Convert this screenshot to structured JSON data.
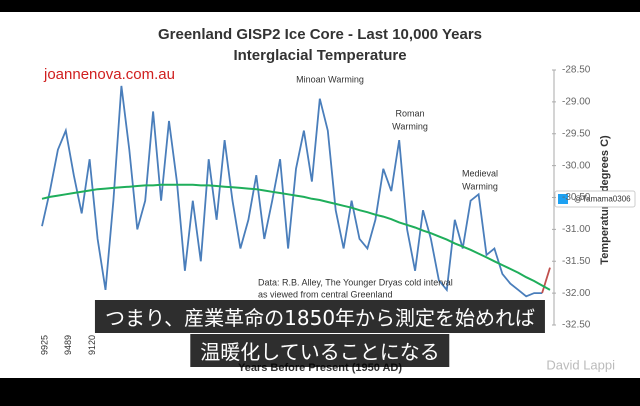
{
  "chart_data": {
    "type": "line",
    "title": "Greenland GISP2 Ice Core - Last 10,000 Years",
    "subtitle": "Interglacial Temperature",
    "source": "joannenova.com.au",
    "x_label": "Years Before Present (1950 AD)",
    "y_label": "Temperature (degrees C)",
    "annotations": [
      "Minoan Warming",
      "Roman",
      "Warming",
      "Medieval",
      "Warming",
      "Data: R.B. Alley, The Younger Dryas cold interval",
      "as viewed from central Greenland"
    ],
    "categories": [
      "9925",
      null,
      null,
      "9489",
      null,
      null,
      "9120",
      null,
      null,
      null,
      null,
      null,
      null,
      null,
      null,
      null,
      null,
      null,
      null,
      null,
      null,
      null,
      null,
      null,
      null,
      null,
      null,
      null,
      null,
      null,
      null,
      null,
      null,
      null,
      null,
      null,
      null,
      null,
      null,
      null,
      null,
      null,
      null,
      null,
      null,
      null,
      null,
      null,
      null,
      null,
      null,
      null,
      null,
      null,
      null,
      null,
      null,
      null,
      null,
      null,
      null,
      null,
      null,
      null,
      null
    ],
    "series": [
      {
        "color": "#4a7ebb",
        "values": [
          -30.95,
          -30.4,
          -29.75,
          -29.45,
          -30.15,
          -30.75,
          -29.9,
          -31.15,
          -31.95,
          -30.55,
          -28.75,
          -29.75,
          -31.0,
          -30.55,
          -29.15,
          -30.55,
          -29.3,
          -30.25,
          -31.65,
          -30.55,
          -31.5,
          -29.9,
          -30.85,
          -29.6,
          -30.55,
          -31.3,
          -30.85,
          -30.15,
          -31.15,
          -30.55,
          -29.9,
          -31.3,
          -30.05,
          -29.45,
          -30.25,
          -28.95,
          -29.45,
          -30.7,
          -31.3,
          -30.55,
          -31.15,
          -31.3,
          -30.85,
          -30.05,
          -30.4,
          -29.6,
          -31.0,
          -31.65,
          -30.7,
          -31.15,
          -31.8,
          -31.95,
          -30.85,
          -31.3,
          -30.55,
          -30.45,
          -31.4,
          -31.3,
          -31.7,
          -31.85,
          -31.95,
          -32.05,
          -32.0,
          -32.0,
          null
        ]
      },
      {
        "color": "#c0504d",
        "values": [
          null,
          null,
          null,
          null,
          null,
          null,
          null,
          null,
          null,
          null,
          null,
          null,
          null,
          null,
          null,
          null,
          null,
          null,
          null,
          null,
          null,
          null,
          null,
          null,
          null,
          null,
          null,
          null,
          null,
          null,
          null,
          null,
          null,
          null,
          null,
          null,
          null,
          null,
          null,
          null,
          null,
          null,
          null,
          null,
          null,
          null,
          null,
          null,
          null,
          null,
          null,
          null,
          null,
          null,
          null,
          null,
          null,
          null,
          null,
          null,
          null,
          null,
          null,
          -32.0,
          -31.6
        ]
      },
      {
        "color": "#1fae5b",
        "values": [
          -30.52,
          -30.49,
          -30.47,
          -30.45,
          -30.43,
          -30.41,
          -30.39,
          -30.37,
          -30.36,
          -30.35,
          -30.34,
          -30.33,
          -30.32,
          -30.31,
          -30.31,
          -30.3,
          -30.3,
          -30.3,
          -30.3,
          -30.3,
          -30.31,
          -30.31,
          -30.32,
          -30.33,
          -30.34,
          -30.35,
          -30.36,
          -30.37,
          -30.39,
          -30.41,
          -30.43,
          -30.45,
          -30.47,
          -30.49,
          -30.52,
          -30.54,
          -30.57,
          -30.6,
          -30.63,
          -30.66,
          -30.7,
          -30.73,
          -30.77,
          -30.8,
          -30.84,
          -30.89,
          -30.93,
          -30.97,
          -31.02,
          -31.06,
          -31.11,
          -31.16,
          -31.22,
          -31.27,
          -31.32,
          -31.38,
          -31.44,
          -31.5,
          -31.56,
          -31.62,
          -31.68,
          -31.75,
          -31.81,
          -31.88,
          -31.95
        ]
      }
    ],
    "ylim": [
      -28.5,
      -32.5
    ],
    "yticks": [
      {
        "value": -28.5,
        "label": "-28.50"
      },
      {
        "value": -29,
        "label": "-29.00"
      },
      {
        "value": -29.5,
        "label": "-29.50"
      },
      {
        "value": -30,
        "label": "-30.00"
      },
      {
        "value": -30.5,
        "label": "-30.50"
      },
      {
        "value": -31,
        "label": "-31.00"
      },
      {
        "value": -31.5,
        "label": "-31.50"
      },
      {
        "value": -32,
        "label": "-32.00"
      },
      {
        "value": -32.5,
        "label": "-32.50"
      }
    ],
    "grid": false
  },
  "caption": {
    "lines": [
      "つまり、産業革命の1850年から測定を始めれば",
      "温暖化していることになる"
    ]
  },
  "badge": "@Tamama0306",
  "watermark": "David Lappi"
}
